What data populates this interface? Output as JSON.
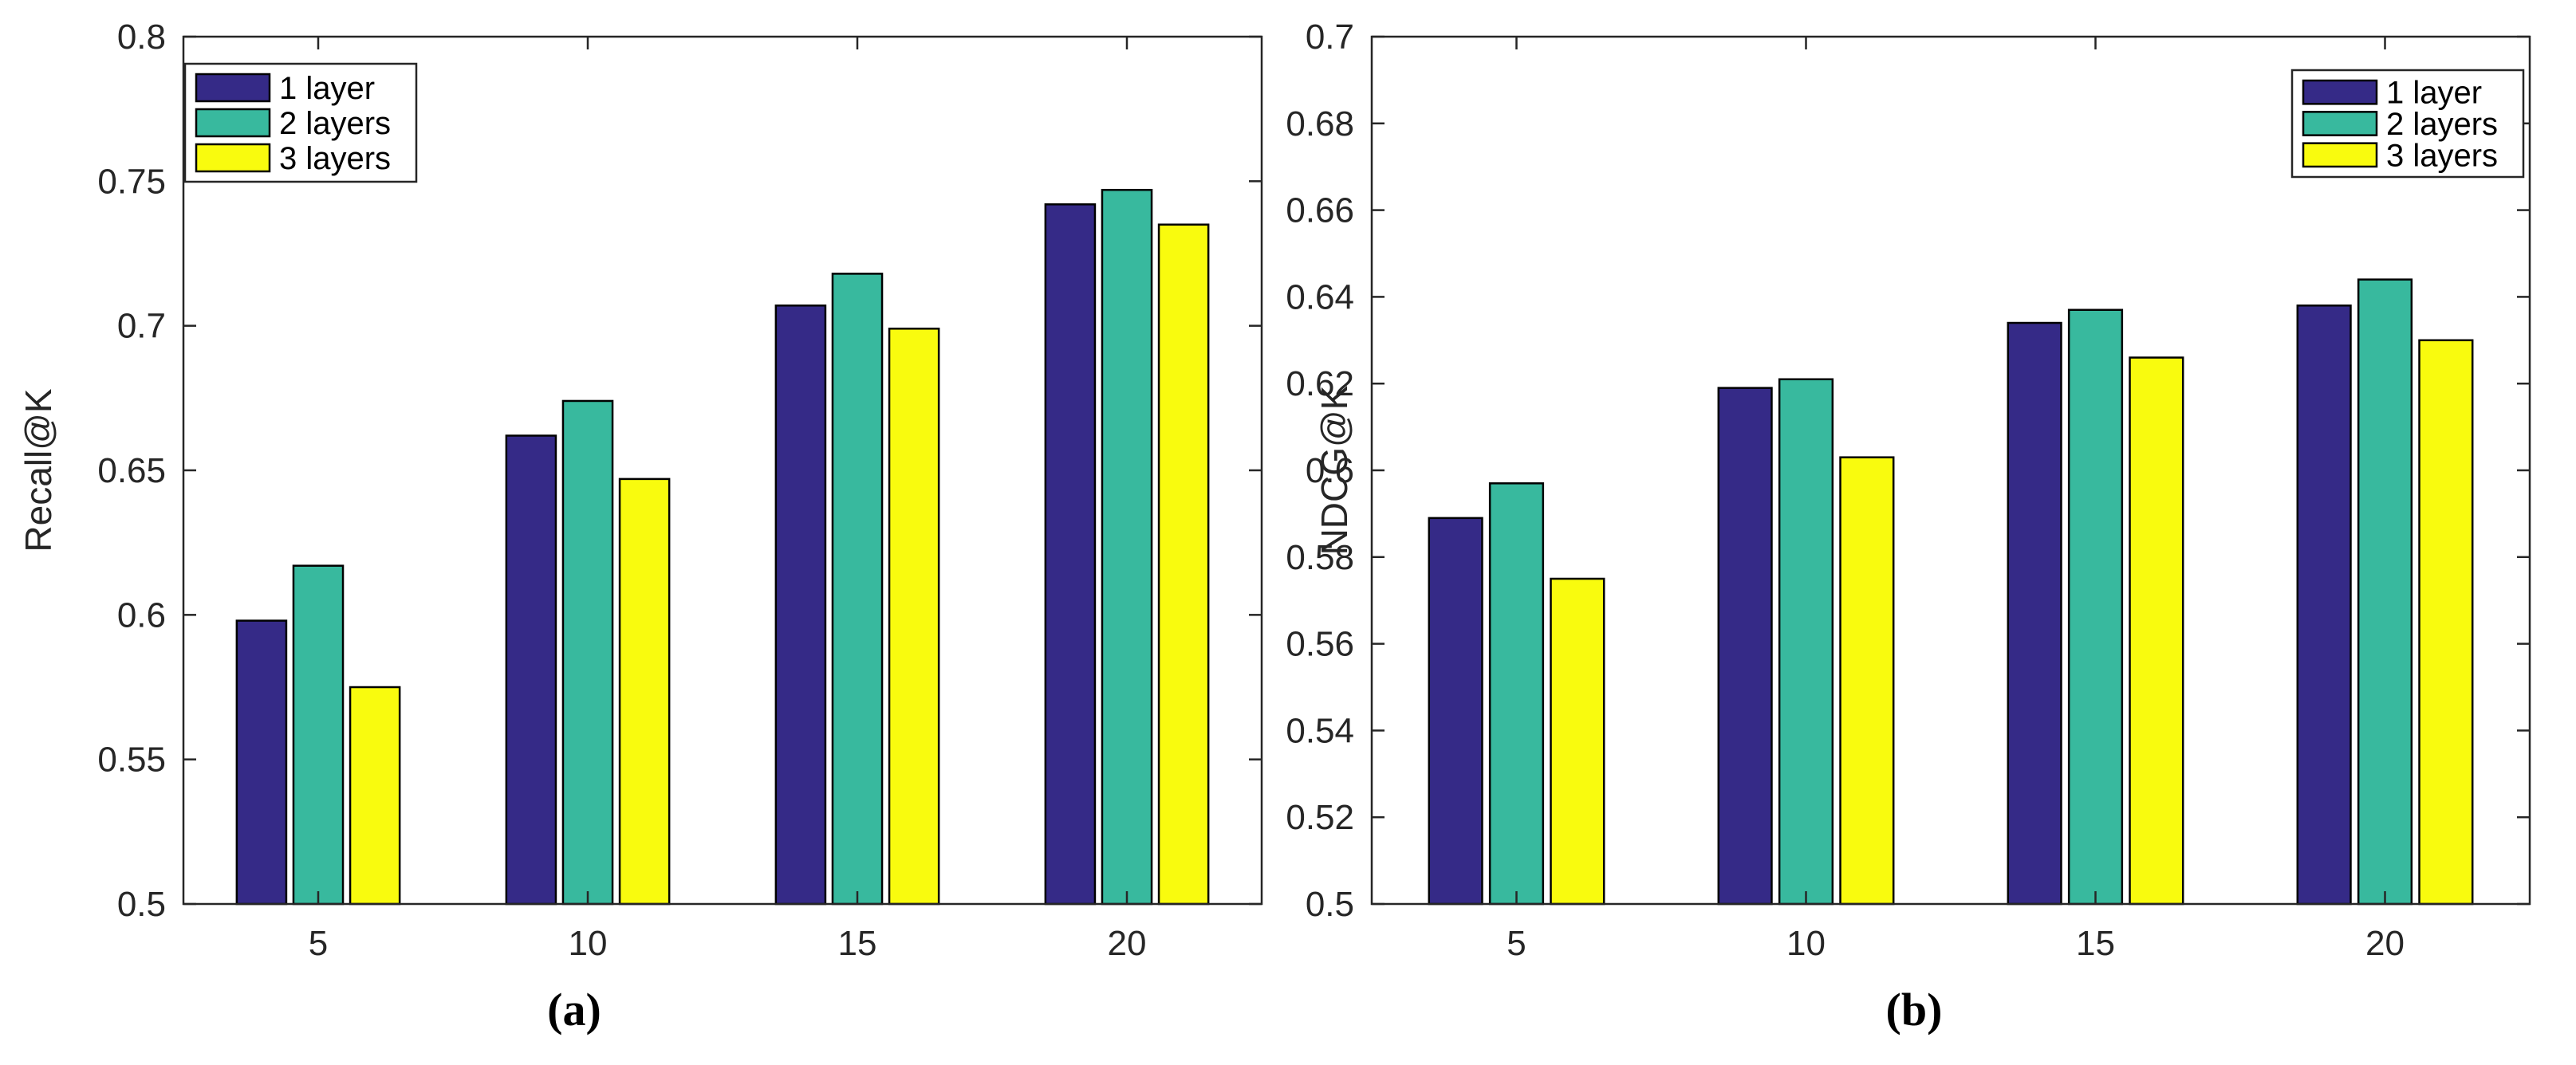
{
  "chart_data": [
    {
      "type": "bar",
      "panel_label": "(a)",
      "categories": [
        "5",
        "10",
        "15",
        "20"
      ],
      "ylabel": "Recall@K",
      "xlabel": "",
      "ylim": [
        0.5,
        0.8
      ],
      "yticks": [
        "0.5",
        "0.55",
        "0.6",
        "0.65",
        "0.7",
        "0.75",
        "0.8"
      ],
      "legend_position": "top-left",
      "series": [
        {
          "name": "1 layer",
          "color": "#352a87",
          "values": [
            0.598,
            0.662,
            0.707,
            0.742
          ]
        },
        {
          "name": "2 layers",
          "color": "#38b99e",
          "values": [
            0.617,
            0.674,
            0.718,
            0.747
          ]
        },
        {
          "name": "3 layers",
          "color": "#f9fb0e",
          "values": [
            0.575,
            0.647,
            0.699,
            0.735
          ]
        }
      ]
    },
    {
      "type": "bar",
      "panel_label": "(b)",
      "categories": [
        "5",
        "10",
        "15",
        "20"
      ],
      "ylabel": "NDCG@K",
      "xlabel": "",
      "ylim": [
        0.5,
        0.7
      ],
      "yticks": [
        "0.5",
        "0.52",
        "0.54",
        "0.56",
        "0.58",
        "0.6",
        "0.62",
        "0.64",
        "0.66",
        "0.68",
        "0.7"
      ],
      "legend_position": "top-right",
      "series": [
        {
          "name": "1 layer",
          "color": "#352a87",
          "values": [
            0.589,
            0.619,
            0.634,
            0.638
          ]
        },
        {
          "name": "2 layers",
          "color": "#38b99e",
          "values": [
            0.597,
            0.621,
            0.637,
            0.644
          ]
        },
        {
          "name": "3 layers",
          "color": "#f9fb0e",
          "values": [
            0.575,
            0.603,
            0.626,
            0.63
          ]
        }
      ]
    }
  ]
}
